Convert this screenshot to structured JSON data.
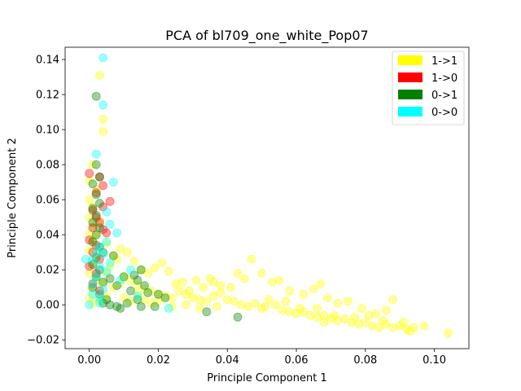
{
  "chart_data": {
    "type": "scatter",
    "title": "PCA of bl709_one_white_Pop07",
    "xlabel": "Principle Component 1",
    "ylabel": "Principle Component 2",
    "xlim": [
      -0.007,
      0.11
    ],
    "ylim": [
      -0.025,
      0.147
    ],
    "xticks": [
      0.0,
      0.02,
      0.04,
      0.06,
      0.08,
      0.1
    ],
    "xtick_labels": [
      "0.00",
      "0.02",
      "0.04",
      "0.06",
      "0.08",
      "0.10"
    ],
    "yticks": [
      -0.02,
      0.0,
      0.02,
      0.04,
      0.06,
      0.08,
      0.1,
      0.12,
      0.14
    ],
    "ytick_labels": [
      "−0.02",
      "0.00",
      "0.02",
      "0.04",
      "0.06",
      "0.08",
      "0.10",
      "0.12",
      "0.14"
    ],
    "grid": false,
    "legend_position": "top-right",
    "series": [
      {
        "name": "1->1",
        "color": "#ffff00",
        "points": [
          [
            0.003,
            0.131
          ],
          [
            0.004,
            0.106
          ],
          [
            0.004,
            0.099
          ],
          [
            0.001,
            0.08
          ],
          [
            0.0,
            0.071
          ],
          [
            0.002,
            0.066
          ],
          [
            0.0,
            0.06
          ],
          [
            0.001,
            0.056
          ],
          [
            0.0,
            0.05
          ],
          [
            0.001,
            0.045
          ],
          [
            0.0,
            0.04
          ],
          [
            0.001,
            0.036
          ],
          [
            0.0,
            0.031
          ],
          [
            0.002,
            0.028
          ],
          [
            0.001,
            0.023
          ],
          [
            0.0,
            0.018
          ],
          [
            0.002,
            0.014
          ],
          [
            0.001,
            0.009
          ],
          [
            0.0,
            0.004
          ],
          [
            0.001,
            0.001
          ],
          [
            0.003,
            0.002
          ],
          [
            0.005,
            0.005
          ],
          [
            0.007,
            0.01
          ],
          [
            0.009,
            0.012
          ],
          [
            0.01,
            0.016
          ],
          [
            0.012,
            0.014
          ],
          [
            0.014,
            0.011
          ],
          [
            0.016,
            0.009
          ],
          [
            0.018,
            0.008
          ],
          [
            0.02,
            0.006
          ],
          [
            0.022,
            0.005
          ],
          [
            0.024,
            0.004
          ],
          [
            0.026,
            0.008
          ],
          [
            0.028,
            0.006
          ],
          [
            0.03,
            0.004
          ],
          [
            0.032,
            0.003
          ],
          [
            0.034,
            0.002
          ],
          [
            0.036,
            0.005
          ],
          [
            0.038,
            0.007
          ],
          [
            0.04,
            0.003
          ],
          [
            0.042,
            0.002
          ],
          [
            0.044,
            0.0
          ],
          [
            0.046,
            -0.001
          ],
          [
            0.048,
            0.001
          ],
          [
            0.05,
            -0.002
          ],
          [
            0.052,
            0.003
          ],
          [
            0.054,
            0.0
          ],
          [
            0.056,
            -0.003
          ],
          [
            0.058,
            -0.004
          ],
          [
            0.06,
            -0.005
          ],
          [
            0.062,
            -0.004
          ],
          [
            0.064,
            -0.006
          ],
          [
            0.066,
            -0.007
          ],
          [
            0.068,
            -0.006
          ],
          [
            0.07,
            -0.008
          ],
          [
            0.072,
            -0.009
          ],
          [
            0.074,
            -0.008
          ],
          [
            0.076,
            -0.01
          ],
          [
            0.078,
            -0.011
          ],
          [
            0.08,
            -0.01
          ],
          [
            0.082,
            -0.012
          ],
          [
            0.084,
            -0.013
          ],
          [
            0.086,
            -0.011
          ],
          [
            0.088,
            -0.013
          ],
          [
            0.09,
            -0.012
          ],
          [
            0.092,
            -0.014
          ],
          [
            0.094,
            -0.013
          ],
          [
            0.104,
            -0.016
          ],
          [
            0.025,
            0.012
          ],
          [
            0.031,
            0.014
          ],
          [
            0.035,
            0.015
          ],
          [
            0.038,
            0.011
          ],
          [
            0.045,
            0.015
          ],
          [
            0.047,
            0.026
          ],
          [
            0.05,
            0.018
          ],
          [
            0.053,
            0.013
          ],
          [
            0.055,
            0.014
          ],
          [
            0.058,
            0.008
          ],
          [
            0.062,
            0.006
          ],
          [
            0.065,
            0.009
          ],
          [
            0.067,
            0.012
          ],
          [
            0.069,
            0.004
          ],
          [
            0.072,
            0.001
          ],
          [
            0.075,
            0.002
          ],
          [
            0.079,
            -0.002
          ],
          [
            0.083,
            -0.005
          ],
          [
            0.086,
            -0.003
          ],
          [
            0.088,
            0.003
          ],
          [
            0.041,
            0.01
          ],
          [
            0.043,
            0.018
          ],
          [
            0.036,
            0.013
          ],
          [
            0.033,
            0.01
          ],
          [
            0.029,
            0.008
          ],
          [
            0.027,
            0.013
          ],
          [
            0.023,
            0.019
          ],
          [
            0.021,
            0.024
          ],
          [
            0.019,
            0.021
          ],
          [
            0.017,
            0.018
          ],
          [
            0.015,
            0.02
          ],
          [
            0.013,
            0.025
          ],
          [
            0.011,
            0.03
          ],
          [
            0.009,
            0.032
          ],
          [
            0.008,
            0.026
          ],
          [
            0.006,
            0.022
          ],
          [
            0.005,
            0.018
          ],
          [
            0.004,
            0.012
          ],
          [
            0.002,
            0.04
          ],
          [
            0.003,
            0.048
          ],
          [
            0.005,
            0.035
          ],
          [
            0.007,
            0.028
          ],
          [
            0.01,
            0.004
          ],
          [
            0.012,
            0.002
          ],
          [
            0.014,
            0.006
          ],
          [
            0.016,
            0.003
          ],
          [
            0.018,
            0.001
          ],
          [
            0.02,
            0.002
          ],
          [
            0.024,
            -0.001
          ],
          [
            0.028,
            0.0
          ],
          [
            0.032,
            -0.002
          ],
          [
            0.037,
            -0.001
          ],
          [
            0.051,
            -0.001
          ],
          [
            0.057,
            0.002
          ],
          [
            0.061,
            -0.002
          ],
          [
            0.066,
            -0.002
          ],
          [
            0.068,
            -0.01
          ],
          [
            0.071,
            -0.006
          ],
          [
            0.077,
            -0.007
          ],
          [
            0.081,
            -0.006
          ],
          [
            0.085,
            -0.009
          ],
          [
            0.091,
            -0.01
          ],
          [
            0.093,
            -0.015
          ],
          [
            0.097,
            -0.012
          ]
        ]
      },
      {
        "name": "1->0",
        "color": "#ff0000",
        "points": [
          [
            0.0,
            0.075
          ],
          [
            0.003,
            0.073
          ],
          [
            0.004,
            0.068
          ],
          [
            0.002,
            0.064
          ],
          [
            0.006,
            0.059
          ],
          [
            0.004,
            0.056
          ],
          [
            0.001,
            0.054
          ],
          [
            0.002,
            0.05
          ],
          [
            0.003,
            0.047
          ],
          [
            0.001,
            0.044
          ],
          [
            0.004,
            0.043
          ],
          [
            0.005,
            0.041
          ],
          [
            0.0,
            0.037
          ],
          [
            0.002,
            0.034
          ],
          [
            0.001,
            0.03
          ],
          [
            0.003,
            0.026
          ],
          [
            0.0,
            0.022
          ],
          [
            0.002,
            0.018
          ],
          [
            0.001,
            0.012
          ],
          [
            0.003,
            0.008
          ]
        ]
      },
      {
        "name": "0->1",
        "color": "#008000",
        "points": [
          [
            0.002,
            0.119
          ],
          [
            0.002,
            0.08
          ],
          [
            0.003,
            0.073
          ],
          [
            0.001,
            0.069
          ],
          [
            0.002,
            0.063
          ],
          [
            0.003,
            0.058
          ],
          [
            0.001,
            0.055
          ],
          [
            0.002,
            0.051
          ],
          [
            0.001,
            0.047
          ],
          [
            0.003,
            0.044
          ],
          [
            0.002,
            0.04
          ],
          [
            0.001,
            0.036
          ],
          [
            0.003,
            0.033
          ],
          [
            0.004,
            0.03
          ],
          [
            0.002,
            0.027
          ],
          [
            0.001,
            0.023
          ],
          [
            0.003,
            0.02
          ],
          [
            0.002,
            0.016
          ],
          [
            0.004,
            0.013
          ],
          [
            0.001,
            0.01
          ],
          [
            0.003,
            0.006
          ],
          [
            0.005,
            0.003
          ],
          [
            0.004,
            0.001
          ],
          [
            0.006,
            0.0
          ],
          [
            0.008,
            -0.001
          ],
          [
            0.009,
            -0.002
          ],
          [
            0.011,
            0.001
          ],
          [
            0.012,
            0.008
          ],
          [
            0.014,
            0.014
          ],
          [
            0.015,
            0.02
          ],
          [
            0.015,
            -0.001
          ],
          [
            0.016,
            0.011
          ],
          [
            0.017,
            0.007
          ],
          [
            0.019,
            -0.001
          ],
          [
            0.02,
            0.006
          ],
          [
            0.022,
            0.004
          ],
          [
            0.007,
            0.028
          ],
          [
            0.008,
            0.011
          ],
          [
            0.013,
            0.017
          ],
          [
            0.034,
            -0.004
          ],
          [
            0.043,
            -0.007
          ],
          [
            0.014,
            0.003
          ],
          [
            0.01,
            0.016
          ],
          [
            0.006,
            0.015
          ]
        ]
      },
      {
        "name": "0->0",
        "color": "#00ffff",
        "points": [
          [
            0.004,
            0.141
          ],
          [
            0.004,
            0.114
          ],
          [
            0.002,
            0.086
          ],
          [
            0.007,
            0.07
          ],
          [
            0.005,
            0.053
          ],
          [
            0.006,
            0.046
          ],
          [
            0.008,
            0.041
          ],
          [
            0.005,
            0.036
          ],
          [
            0.003,
            0.033
          ],
          [
            0.004,
            0.029
          ],
          [
            0.001,
            0.026
          ],
          [
            -0.001,
            0.026
          ],
          [
            0.003,
            0.022
          ],
          [
            0.005,
            0.019
          ],
          [
            0.002,
            0.016
          ],
          [
            0.001,
            0.012
          ],
          [
            0.004,
            0.009
          ],
          [
            0.001,
            0.006
          ],
          [
            0.003,
            0.004
          ],
          [
            0.012,
            0.02
          ],
          [
            0.014,
            0.005
          ],
          [
            0.023,
            -0.002
          ],
          [
            0.006,
            0.024
          ],
          [
            0.009,
            0.014
          ],
          [
            0.002,
            0.03
          ],
          [
            0.0,
            0.0
          ],
          [
            0.003,
            0.001
          ]
        ]
      }
    ]
  }
}
